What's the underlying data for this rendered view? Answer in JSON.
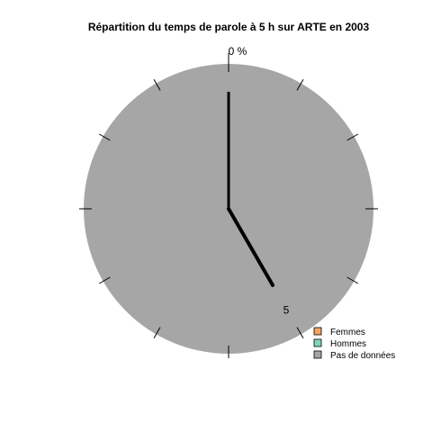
{
  "chart_data": {
    "type": "pie",
    "title": "Répartition du temps de parole à 5 h sur ARTE en 2003",
    "top_label": "0 %",
    "hour_label": "5",
    "hour": 5,
    "slices": [
      {
        "name": "Femmes",
        "value": 0,
        "color": "#f4a460"
      },
      {
        "name": "Hommes",
        "value": 0,
        "color": "#7fd6b8"
      },
      {
        "name": "Pas de données",
        "value": 100,
        "color": "#a6a6a6"
      }
    ],
    "legend": [
      "Femmes",
      "Hommes",
      "Pas de données"
    ],
    "legend_position": "bottom-right"
  }
}
